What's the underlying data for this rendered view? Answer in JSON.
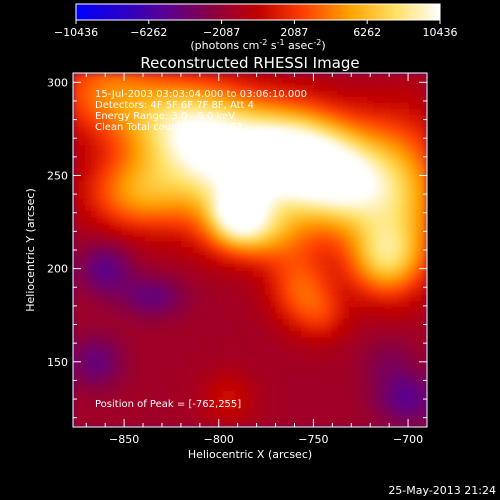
{
  "colorbar": {
    "ticks": [
      "-10436",
      "-6262",
      "-2087",
      "2087",
      "6262",
      "10436"
    ],
    "unit_label_parts": {
      "a": "(photons cm",
      "b": "-2",
      "c": " s",
      "d": "-1",
      "e": " asec",
      "f": "-2",
      "g": ")"
    },
    "colors": [
      "#0000ff",
      "#2a00c8",
      "#5a0090",
      "#8a0040",
      "#c00000",
      "#ff4000",
      "#ffa000",
      "#ffe060",
      "#ffffff"
    ]
  },
  "chart_data": {
    "type": "heatmap",
    "title": "Reconstructed RHESSI Image",
    "xlabel": "Heliocentric X (arcsec)",
    "ylabel": "Heliocentric Y (arcsec)",
    "xlim": [
      -877,
      -690
    ],
    "ylim": [
      115,
      305
    ],
    "xticks": [
      -850,
      -800,
      -750,
      -700
    ],
    "yticks": [
      150,
      200,
      250,
      300
    ],
    "xtick_labels": [
      "-850",
      "-800",
      "-750",
      "-700"
    ],
    "ytick_labels": [
      "150",
      "200",
      "250",
      "300"
    ],
    "info_lines": [
      "15-Jul-2003 03:03:04.000 to 03:06:10.000",
      "Detectors: 4F 5F 6F 7F 8F, Att 4",
      "Energy Range: 3.0 - 6.0 keV",
      "Clean     Total counts: 1.81E+03"
    ],
    "peak_label": "Position of Peak = [-762,255]",
    "peak": [
      -762,
      255
    ],
    "sources": [
      {
        "x": -800,
        "y": 258,
        "amp": 10000,
        "sx": 28,
        "sy": 22
      },
      {
        "x": -760,
        "y": 260,
        "amp": 10436,
        "sx": 22,
        "sy": 18
      },
      {
        "x": -735,
        "y": 245,
        "amp": 8000,
        "sx": 18,
        "sy": 18
      },
      {
        "x": -705,
        "y": 240,
        "amp": 7000,
        "sx": 18,
        "sy": 28
      },
      {
        "x": -712,
        "y": 205,
        "amp": 6500,
        "sx": 14,
        "sy": 14
      },
      {
        "x": -860,
        "y": 295,
        "amp": 5000,
        "sx": 20,
        "sy": 16
      },
      {
        "x": -845,
        "y": 240,
        "amp": 5000,
        "sx": 18,
        "sy": 14
      },
      {
        "x": -820,
        "y": 280,
        "amp": 6000,
        "sx": 22,
        "sy": 16
      },
      {
        "x": -780,
        "y": 220,
        "amp": 6000,
        "sx": 18,
        "sy": 12
      },
      {
        "x": -790,
        "y": 230,
        "amp": 6500,
        "sx": 10,
        "sy": 10
      },
      {
        "x": -757,
        "y": 190,
        "amp": 4500,
        "sx": 12,
        "sy": 14
      },
      {
        "x": -745,
        "y": 175,
        "amp": 2500,
        "sx": 10,
        "sy": 10
      },
      {
        "x": -795,
        "y": 130,
        "amp": 2000,
        "sx": 10,
        "sy": 10
      },
      {
        "x": -860,
        "y": 200,
        "amp": -3500,
        "sx": 10,
        "sy": 10
      },
      {
        "x": -835,
        "y": 185,
        "amp": -3000,
        "sx": 12,
        "sy": 8
      },
      {
        "x": -865,
        "y": 150,
        "amp": -3000,
        "sx": 10,
        "sy": 10
      },
      {
        "x": -700,
        "y": 130,
        "amp": -3500,
        "sx": 12,
        "sy": 10
      },
      {
        "x": -710,
        "y": 150,
        "amp": -1500,
        "sx": 10,
        "sy": 10
      }
    ],
    "background": -1500
  },
  "footer": {
    "timestamp": "25-May-2013 21:24"
  }
}
